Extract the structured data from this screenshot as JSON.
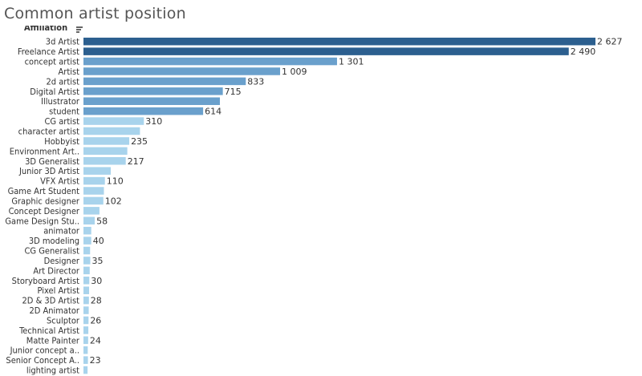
{
  "title": "Common artist position",
  "field_header": "Affiliation",
  "icons": {
    "sort": "sort-descending-icon"
  },
  "colors": {
    "dark": "#2c5f8f",
    "mid": "#6aa0cc",
    "light": "#a8d3ec"
  },
  "chart_data": {
    "type": "bar",
    "orientation": "horizontal",
    "title": "Common artist position",
    "xlabel": "",
    "ylabel": "Affiliation",
    "grid": false,
    "categories": [
      "3d Artist",
      "Freelance Artist",
      "concept artist",
      "Artist",
      "2d artist",
      "Digital Artist",
      "Illustrator",
      "student",
      "CG artist",
      "character artist",
      "Hobbyist",
      "Environment Art..",
      "3D Generalist",
      "Junior 3D Artist",
      "VFX Artist",
      "Game Art Student",
      "Graphic designer",
      "Concept Designer",
      "Game Design Stu..",
      "animator",
      "3D modeling",
      "CG Generalist",
      "Designer",
      "Art Director",
      "Storyboard Artist",
      "Pixel Artist",
      "2D & 3D Artist",
      "2D Animator",
      "Sculptor",
      "Technical Artist",
      "Matte Painter",
      "Junior concept a..",
      "Senior Concept A..",
      "lighting artist"
    ],
    "values": [
      2627,
      2490,
      1301,
      1009,
      833,
      715,
      700,
      614,
      310,
      290,
      235,
      225,
      217,
      140,
      110,
      105,
      102,
      82,
      58,
      40,
      40,
      34,
      35,
      32,
      30,
      29,
      28,
      27,
      26,
      25,
      24,
      22,
      23,
      21
    ],
    "value_labels": [
      "2 627",
      "2 490",
      "1 301",
      "1 009",
      "833",
      "715",
      "",
      "614",
      "310",
      "",
      "235",
      "",
      "217",
      "",
      "110",
      "",
      "102",
      "",
      "58",
      "",
      "40",
      "",
      "35",
      "",
      "30",
      "",
      "28",
      "",
      "26",
      "",
      "24",
      "",
      "23",
      ""
    ]
  }
}
